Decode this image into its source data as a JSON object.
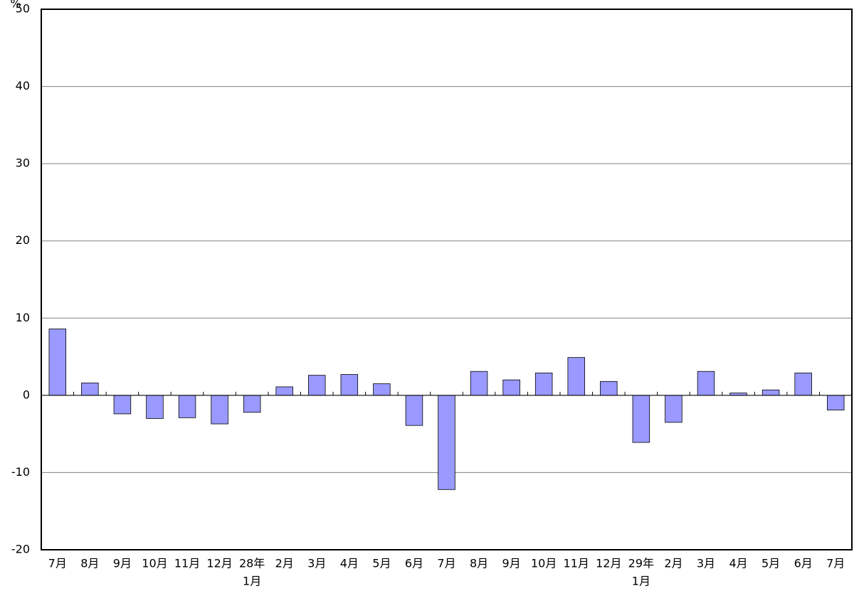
{
  "chart_data": {
    "type": "bar",
    "y_unit": "%",
    "categories": [
      [
        "7月"
      ],
      [
        "8月"
      ],
      [
        "9月"
      ],
      [
        "10月"
      ],
      [
        "11月"
      ],
      [
        "12月"
      ],
      [
        "28年",
        "1月"
      ],
      [
        "2月"
      ],
      [
        "3月"
      ],
      [
        "4月"
      ],
      [
        "5月"
      ],
      [
        "6月"
      ],
      [
        "7月"
      ],
      [
        "8月"
      ],
      [
        "9月"
      ],
      [
        "10月"
      ],
      [
        "11月"
      ],
      [
        "12月"
      ],
      [
        "29年",
        "1月"
      ],
      [
        "2月"
      ],
      [
        "3月"
      ],
      [
        "4月"
      ],
      [
        "5月"
      ],
      [
        "6月"
      ],
      [
        "7月"
      ]
    ],
    "values": [
      8.6,
      1.6,
      -2.4,
      -3.0,
      -2.9,
      -3.7,
      -2.2,
      1.1,
      2.6,
      2.7,
      1.5,
      -3.9,
      -12.2,
      3.1,
      2.0,
      2.9,
      4.9,
      1.8,
      -6.1,
      -3.5,
      3.1,
      0.3,
      0.7,
      2.9,
      -1.9
    ],
    "color": "#9999ff",
    "ylim": [
      -20,
      50
    ],
    "yticks": [
      -20,
      -10,
      0,
      10,
      20,
      30,
      40,
      50
    ],
    "grid": true
  }
}
